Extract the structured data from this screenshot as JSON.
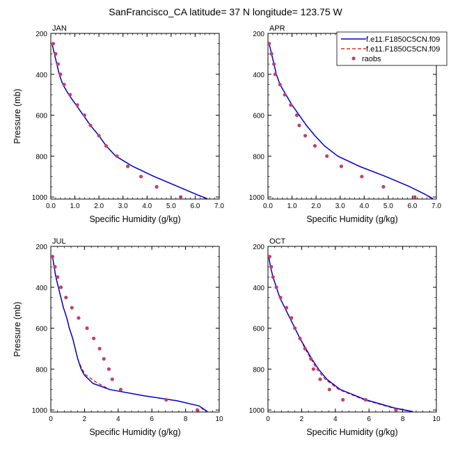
{
  "title": "SanFrancisco_CA  latitude= 37 N longitude= 123.75 W",
  "legend": {
    "entries": [
      {
        "label": "f.e11.F1850C5CN.f09",
        "style": "solid",
        "color": "#0000cc"
      },
      {
        "label": "f.e11.F1850C5CN.f09",
        "style": "dashed",
        "color": "#dd0000"
      },
      {
        "label": "raobs",
        "style": "dot",
        "color": "#c04070"
      }
    ]
  },
  "colors": {
    "model1": "#0000cc",
    "model2": "#dd0000",
    "raobs": "#c04070"
  },
  "chart_data": [
    {
      "type": "line",
      "panel": "JAN",
      "xlabel": "Specific Humidity (g/kg)",
      "ylabel": "Pressure (mb)",
      "xlim": [
        0,
        7
      ],
      "ylim": [
        1010,
        200
      ],
      "xticks": [
        0,
        1,
        2,
        3,
        4,
        5,
        6,
        7
      ],
      "xtick_labels": [
        "0.0",
        "1.0",
        "2.0",
        "3.0",
        "4.0",
        "5.0",
        "6.0",
        "7.0"
      ],
      "yticks": [
        200,
        400,
        600,
        800,
        1000
      ],
      "ytick_labels": [
        "200",
        "400",
        "600",
        "800",
        "1000"
      ],
      "series": [
        {
          "name": "f.e11.F1850C5CN.f09",
          "style": "solid",
          "points": [
            [
              0.05,
              250
            ],
            [
              0.15,
              300
            ],
            [
              0.25,
              350
            ],
            [
              0.35,
              400
            ],
            [
              0.5,
              450
            ],
            [
              0.75,
              500
            ],
            [
              1.05,
              550
            ],
            [
              1.35,
              600
            ],
            [
              1.65,
              650
            ],
            [
              2.0,
              700
            ],
            [
              2.3,
              750
            ],
            [
              2.7,
              800
            ],
            [
              3.4,
              850
            ],
            [
              4.3,
              900
            ],
            [
              5.3,
              950
            ],
            [
              6.1,
              990
            ],
            [
              6.5,
              1008
            ]
          ]
        },
        {
          "name": "f.e11.F1850C5CN.f09",
          "style": "dashed",
          "points": [
            [
              0.05,
              250
            ],
            [
              0.15,
              300
            ],
            [
              0.25,
              350
            ],
            [
              0.35,
              400
            ],
            [
              0.5,
              450
            ],
            [
              0.75,
              500
            ],
            [
              1.05,
              550
            ],
            [
              1.35,
              600
            ],
            [
              1.65,
              650
            ],
            [
              2.0,
              700
            ],
            [
              2.3,
              750
            ],
            [
              2.7,
              800
            ],
            [
              3.4,
              850
            ],
            [
              4.3,
              900
            ],
            [
              5.3,
              950
            ],
            [
              6.1,
              990
            ],
            [
              6.45,
              1008
            ]
          ]
        },
        {
          "name": "raobs",
          "style": "dot",
          "points": [
            [
              0.1,
              250
            ],
            [
              0.2,
              300
            ],
            [
              0.3,
              350
            ],
            [
              0.4,
              400
            ],
            [
              0.55,
              450
            ],
            [
              0.8,
              500
            ],
            [
              1.1,
              550
            ],
            [
              1.4,
              600
            ],
            [
              1.65,
              650
            ],
            [
              2.0,
              700
            ],
            [
              2.3,
              750
            ],
            [
              2.75,
              800
            ],
            [
              3.2,
              850
            ],
            [
              3.75,
              900
            ],
            [
              4.4,
              950
            ],
            [
              5.4,
              1000
            ]
          ]
        }
      ]
    },
    {
      "type": "line",
      "panel": "APR",
      "xlabel": "Specific Humidity (g/kg)",
      "ylabel": "",
      "xlim": [
        0,
        7
      ],
      "ylim": [
        1010,
        200
      ],
      "xticks": [
        0,
        1,
        2,
        3,
        4,
        5,
        6,
        7
      ],
      "xtick_labels": [
        "0.0",
        "1.0",
        "2.0",
        "3.0",
        "4.0",
        "5.0",
        "6.0",
        "7.0"
      ],
      "yticks": [
        200,
        400,
        600,
        800,
        1000
      ],
      "ytick_labels": [
        "200",
        "400",
        "600",
        "800",
        "1000"
      ],
      "series": [
        {
          "name": "f.e11.F1850C5CN.f09",
          "style": "solid",
          "points": [
            [
              0.05,
              250
            ],
            [
              0.15,
              300
            ],
            [
              0.25,
              350
            ],
            [
              0.35,
              400
            ],
            [
              0.5,
              450
            ],
            [
              0.75,
              500
            ],
            [
              1.0,
              550
            ],
            [
              1.3,
              600
            ],
            [
              1.6,
              650
            ],
            [
              1.95,
              700
            ],
            [
              2.35,
              750
            ],
            [
              2.9,
              800
            ],
            [
              3.8,
              850
            ],
            [
              4.9,
              900
            ],
            [
              5.9,
              950
            ],
            [
              6.5,
              985
            ],
            [
              6.85,
              1008
            ]
          ]
        },
        {
          "name": "f.e11.F1850C5CN.f09",
          "style": "dashed",
          "points": [
            [
              0.05,
              250
            ],
            [
              0.15,
              300
            ],
            [
              0.25,
              350
            ],
            [
              0.35,
              400
            ],
            [
              0.5,
              450
            ],
            [
              0.75,
              500
            ],
            [
              1.0,
              550
            ],
            [
              1.3,
              600
            ],
            [
              1.6,
              650
            ],
            [
              1.95,
              700
            ],
            [
              2.35,
              750
            ],
            [
              2.9,
              800
            ],
            [
              3.8,
              850
            ],
            [
              4.9,
              900
            ],
            [
              5.9,
              950
            ],
            [
              6.5,
              985
            ],
            [
              6.8,
              1008
            ]
          ]
        },
        {
          "name": "raobs",
          "style": "dot",
          "points": [
            [
              0.05,
              250
            ],
            [
              0.15,
              300
            ],
            [
              0.25,
              350
            ],
            [
              0.3,
              400
            ],
            [
              0.5,
              450
            ],
            [
              0.7,
              500
            ],
            [
              0.95,
              550
            ],
            [
              1.2,
              600
            ],
            [
              1.3,
              650
            ],
            [
              1.55,
              700
            ],
            [
              1.95,
              750
            ],
            [
              2.45,
              800
            ],
            [
              3.05,
              850
            ],
            [
              3.9,
              900
            ],
            [
              4.8,
              950
            ],
            [
              6.1,
              1000
            ]
          ]
        }
      ]
    },
    {
      "type": "line",
      "panel": "JUL",
      "xlabel": "Specific Humidity (g/kg)",
      "ylabel": "Pressure (mb)",
      "xlim": [
        0,
        10
      ],
      "ylim": [
        1010,
        200
      ],
      "xticks": [
        0,
        2,
        4,
        6,
        8,
        10
      ],
      "xtick_labels": [
        "0",
        "2",
        "4",
        "6",
        "8",
        "10"
      ],
      "yticks": [
        200,
        400,
        600,
        800,
        1000
      ],
      "ytick_labels": [
        "200",
        "400",
        "600",
        "800",
        "1000"
      ],
      "series": [
        {
          "name": "f.e11.F1850C5CN.f09",
          "style": "solid",
          "points": [
            [
              0.1,
              250
            ],
            [
              0.2,
              300
            ],
            [
              0.3,
              350
            ],
            [
              0.45,
              400
            ],
            [
              0.6,
              450
            ],
            [
              0.75,
              500
            ],
            [
              0.95,
              550
            ],
            [
              1.1,
              600
            ],
            [
              1.3,
              650
            ],
            [
              1.45,
              700
            ],
            [
              1.6,
              750
            ],
            [
              1.8,
              800
            ],
            [
              2.0,
              830
            ],
            [
              2.5,
              870
            ],
            [
              3.5,
              900
            ],
            [
              5.5,
              930
            ],
            [
              7.5,
              955
            ],
            [
              8.8,
              980
            ],
            [
              9.3,
              1008
            ]
          ]
        },
        {
          "name": "f.e11.F1850C5CN.f09",
          "style": "dashed",
          "points": [
            [
              0.1,
              250
            ],
            [
              0.2,
              300
            ],
            [
              0.3,
              350
            ],
            [
              0.45,
              400
            ],
            [
              0.6,
              450
            ],
            [
              0.75,
              500
            ],
            [
              0.95,
              550
            ],
            [
              1.1,
              600
            ],
            [
              1.3,
              650
            ],
            [
              1.45,
              700
            ],
            [
              1.6,
              750
            ],
            [
              1.85,
              800
            ],
            [
              2.1,
              830
            ],
            [
              2.7,
              865
            ],
            [
              3.5,
              900
            ],
            [
              5.5,
              930
            ],
            [
              7.5,
              955
            ],
            [
              8.8,
              980
            ],
            [
              9.2,
              1008
            ]
          ]
        },
        {
          "name": "raobs",
          "style": "dot",
          "points": [
            [
              0.1,
              250
            ],
            [
              0.25,
              300
            ],
            [
              0.4,
              350
            ],
            [
              0.6,
              400
            ],
            [
              0.9,
              450
            ],
            [
              1.25,
              500
            ],
            [
              1.65,
              550
            ],
            [
              2.15,
              600
            ],
            [
              2.55,
              650
            ],
            [
              2.9,
              700
            ],
            [
              3.15,
              750
            ],
            [
              3.45,
              800
            ],
            [
              3.65,
              850
            ],
            [
              4.15,
              900
            ],
            [
              6.85,
              950
            ],
            [
              8.7,
              1000
            ]
          ]
        }
      ]
    },
    {
      "type": "line",
      "panel": "OCT",
      "xlabel": "Specific Humidity (g/kg)",
      "ylabel": "",
      "xlim": [
        0,
        10
      ],
      "ylim": [
        1010,
        200
      ],
      "xticks": [
        0,
        2,
        4,
        6,
        8,
        10
      ],
      "xtick_labels": [
        "0",
        "2",
        "4",
        "6",
        "8",
        "10"
      ],
      "yticks": [
        200,
        400,
        600,
        800,
        1000
      ],
      "ytick_labels": [
        "200",
        "400",
        "600",
        "800",
        "1000"
      ],
      "series": [
        {
          "name": "f.e11.F1850C5CN.f09",
          "style": "solid",
          "points": [
            [
              0.05,
              250
            ],
            [
              0.15,
              300
            ],
            [
              0.3,
              350
            ],
            [
              0.5,
              400
            ],
            [
              0.7,
              450
            ],
            [
              1.0,
              500
            ],
            [
              1.3,
              550
            ],
            [
              1.6,
              600
            ],
            [
              1.9,
              650
            ],
            [
              2.25,
              700
            ],
            [
              2.6,
              750
            ],
            [
              3.0,
              800
            ],
            [
              3.5,
              850
            ],
            [
              4.3,
              900
            ],
            [
              5.8,
              950
            ],
            [
              7.5,
              990
            ],
            [
              8.6,
              1008
            ]
          ]
        },
        {
          "name": "f.e11.F1850C5CN.f09",
          "style": "dashed",
          "points": [
            [
              0.05,
              250
            ],
            [
              0.15,
              300
            ],
            [
              0.3,
              350
            ],
            [
              0.5,
              400
            ],
            [
              0.7,
              450
            ],
            [
              1.0,
              500
            ],
            [
              1.3,
              550
            ],
            [
              1.6,
              600
            ],
            [
              1.9,
              650
            ],
            [
              2.2,
              700
            ],
            [
              2.55,
              750
            ],
            [
              2.9,
              800
            ],
            [
              3.4,
              850
            ],
            [
              4.2,
              900
            ],
            [
              5.7,
              950
            ],
            [
              7.4,
              990
            ],
            [
              8.5,
              1008
            ]
          ]
        },
        {
          "name": "raobs",
          "style": "dot",
          "points": [
            [
              0.1,
              250
            ],
            [
              0.2,
              300
            ],
            [
              0.3,
              350
            ],
            [
              0.5,
              400
            ],
            [
              0.75,
              450
            ],
            [
              1.1,
              500
            ],
            [
              1.4,
              550
            ],
            [
              1.6,
              600
            ],
            [
              1.9,
              650
            ],
            [
              2.2,
              700
            ],
            [
              2.55,
              750
            ],
            [
              2.7,
              800
            ],
            [
              3.1,
              850
            ],
            [
              3.65,
              900
            ],
            [
              4.45,
              950
            ],
            [
              5.8,
              950
            ],
            [
              7.6,
              1000
            ]
          ]
        }
      ]
    }
  ]
}
